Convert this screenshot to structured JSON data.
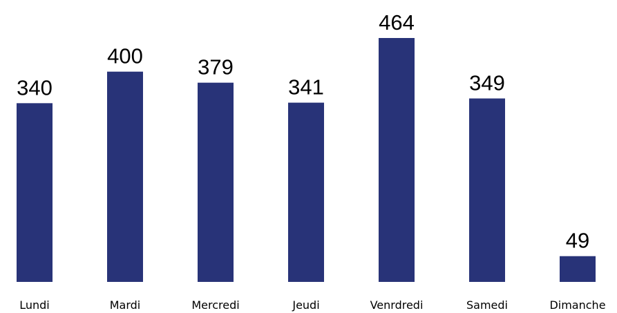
{
  "chart_data": {
    "type": "bar",
    "categories": [
      "Lundi",
      "Mardi",
      "Mercredi",
      "Jeudi",
      "Venrdredi",
      "Samedi",
      "Dimanche"
    ],
    "values": [
      340,
      400,
      379,
      341,
      464,
      349,
      49
    ],
    "color": "#283378"
  }
}
